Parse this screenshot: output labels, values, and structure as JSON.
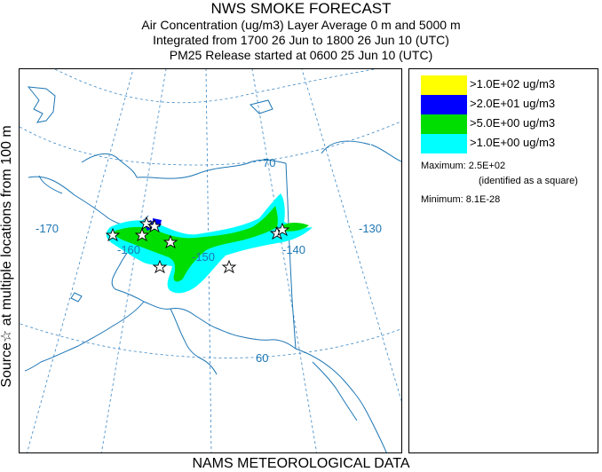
{
  "header": {
    "title": "NWS SMOKE FORECAST",
    "line2": "Air Concentration (ug/m3) Layer Average    0 m and  5000 m",
    "line3": "Integrated from 1700 26 Jun to 1800 26 Jun 10 (UTC)",
    "line4": "PM25 Release started at 0600 25 Jun 10 (UTC)"
  },
  "side_label": "Source☆  at multiple locations   from   100 m",
  "footer": "NAMS METEOROLOGICAL DATA",
  "map": {
    "lat_labels": [
      "70",
      "60"
    ],
    "lon_labels": [
      "-170",
      "-160",
      "-150",
      "-140",
      "-130"
    ],
    "colors": {
      "coast": "#1d76b4",
      "grid": "#3a86c4",
      "source": "#000000"
    }
  },
  "legend": {
    "entries": [
      {
        "label": ">1.0E+02 ug/m3",
        "color": "#ffff00"
      },
      {
        "label": ">2.0E+01 ug/m3",
        "color": "#0000ff"
      },
      {
        "label": ">5.0E+00 ug/m3",
        "color": "#00dd00"
      },
      {
        "label": ">1.0E+00 ug/m3",
        "color": "#00ffff"
      }
    ],
    "maximum": "Maximum: 2.5E+02",
    "maximum_note": "(identified as a square)",
    "minimum": "Minimum: 8.1E-28"
  }
}
